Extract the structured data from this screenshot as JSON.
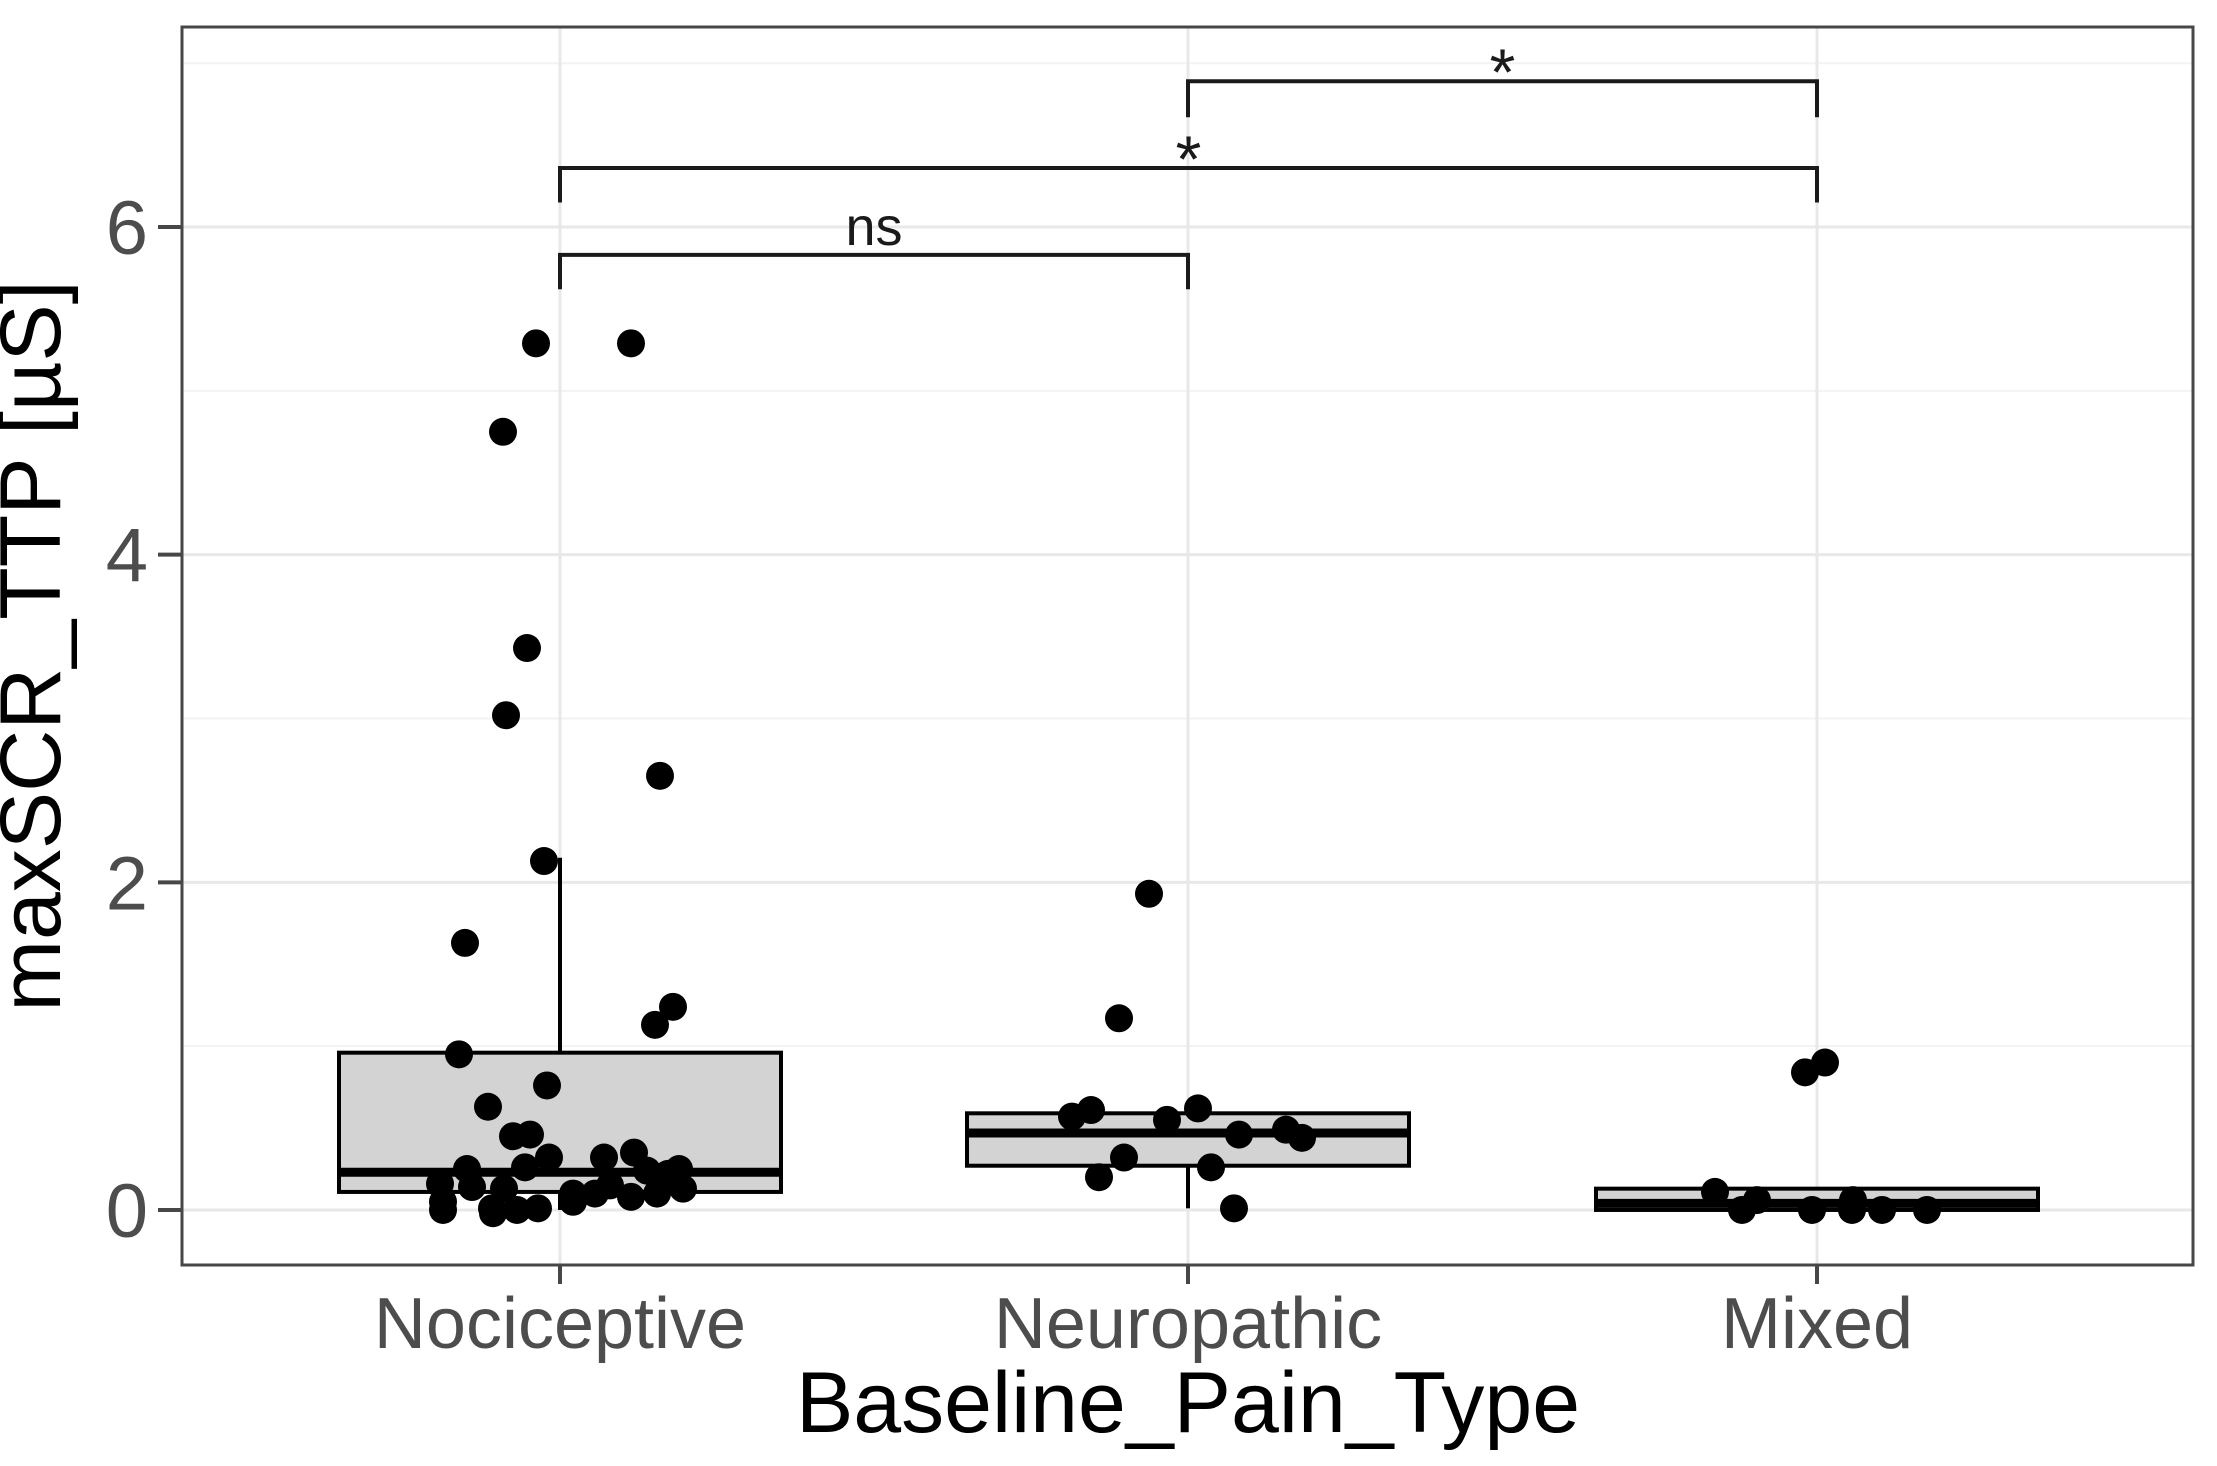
{
  "chart_data": {
    "type": "boxplot",
    "title": "",
    "xlabel": "Baseline_Pain_Type",
    "ylabel": "maxSCR_TTP [µS]",
    "ylim": [
      -0.336,
      7.221
    ],
    "y_major_ticks": [
      0,
      2,
      4,
      6
    ],
    "y_minor_gridlines": [
      1,
      3,
      5,
      7
    ],
    "grid": "horizontal major+minor, vertical at category centers",
    "legend": "none",
    "categories": [
      "Nociceptive",
      "Neuropathic",
      "Mixed"
    ],
    "boxes": [
      {
        "category": "Nociceptive",
        "q1": 0.11,
        "median": 0.23,
        "q3": 0.96,
        "whisker_low": 0.0,
        "whisker_high": 2.15
      },
      {
        "category": "Neuropathic",
        "q1": 0.27,
        "median": 0.47,
        "q3": 0.59,
        "whisker_low": 0.01,
        "whisker_high": null
      },
      {
        "category": "Mixed",
        "q1": 0.0,
        "median": 0.04,
        "q3": 0.13,
        "whisker_low": null,
        "whisker_high": null
      }
    ],
    "points": {
      "Nociceptive": [
        [
          -24,
          5.29
        ],
        [
          71,
          5.29
        ],
        [
          -57,
          4.75
        ],
        [
          -33,
          3.43
        ],
        [
          -54,
          3.02
        ],
        [
          100,
          2.65
        ],
        [
          -16,
          2.13
        ],
        [
          -95,
          1.63
        ],
        [
          113,
          1.24
        ],
        [
          95,
          1.13
        ],
        [
          -101,
          0.95
        ],
        [
          -13,
          0.76
        ],
        [
          -72,
          0.63
        ],
        [
          -47,
          0.45
        ],
        [
          -30,
          0.46
        ],
        [
          -11,
          0.32
        ],
        [
          44,
          0.32
        ],
        [
          74,
          0.35
        ],
        [
          -93,
          0.25
        ],
        [
          -35,
          0.26
        ],
        [
          87,
          0.24
        ],
        [
          108,
          0.22
        ],
        [
          119,
          0.25
        ],
        [
          -120,
          0.16
        ],
        [
          -88,
          0.14
        ],
        [
          -56,
          0.13
        ],
        [
          50,
          0.15
        ],
        [
          123,
          0.13
        ],
        [
          13,
          0.1
        ],
        [
          35,
          0.1
        ],
        [
          71,
          0.08
        ],
        [
          97,
          0.1
        ],
        [
          -117,
          0.05
        ],
        [
          13,
          0.05
        ],
        [
          -117,
          0.0
        ],
        [
          -68,
          0.01
        ],
        [
          -67,
          -0.02
        ],
        [
          -43,
          0.0
        ],
        [
          -22,
          0.01
        ]
      ],
      "Neuropathic": [
        [
          -39,
          1.93
        ],
        [
          -69,
          1.17
        ],
        [
          10,
          0.62
        ],
        [
          -97,
          0.61
        ],
        [
          -116,
          0.57
        ],
        [
          -21,
          0.55
        ],
        [
          98,
          0.49
        ],
        [
          51,
          0.46
        ],
        [
          114,
          0.44
        ],
        [
          -64,
          0.32
        ],
        [
          23,
          0.26
        ],
        [
          -89,
          0.2
        ],
        [
          46,
          0.01
        ]
      ],
      "Mixed": [
        [
          8,
          0.9
        ],
        [
          -12,
          0.84
        ],
        [
          -102,
          0.11
        ],
        [
          -60,
          0.06
        ],
        [
          36,
          0.06
        ],
        [
          -75,
          0.0
        ],
        [
          -5,
          0.0
        ],
        [
          35,
          0.0
        ],
        [
          65,
          0.0
        ],
        [
          110,
          0.0
        ]
      ]
    },
    "significance_brackets": [
      {
        "from": "Nociceptive",
        "to": "Neuropathic",
        "label": "ns",
        "y": 5.83,
        "tick_drop": 0.21
      },
      {
        "from": "Nociceptive",
        "to": "Mixed",
        "label": "*",
        "y": 6.36,
        "tick_drop": 0.21
      },
      {
        "from": "Neuropathic",
        "to": "Mixed",
        "label": "*",
        "y": 6.89,
        "tick_drop": 0.22
      }
    ],
    "colors": {
      "background": "#ffffff",
      "box_fill": "#d3d3d3",
      "box_stroke": "#000000",
      "point": "#000000",
      "grid_major": "#e8e8e8",
      "grid_minor": "#f3f3f3",
      "panel_border": "#474747",
      "tick_mark": "#474747",
      "tick_label": "#4d4d4d",
      "axis_title": "#000000",
      "bracket": "#1a1a1a"
    }
  }
}
